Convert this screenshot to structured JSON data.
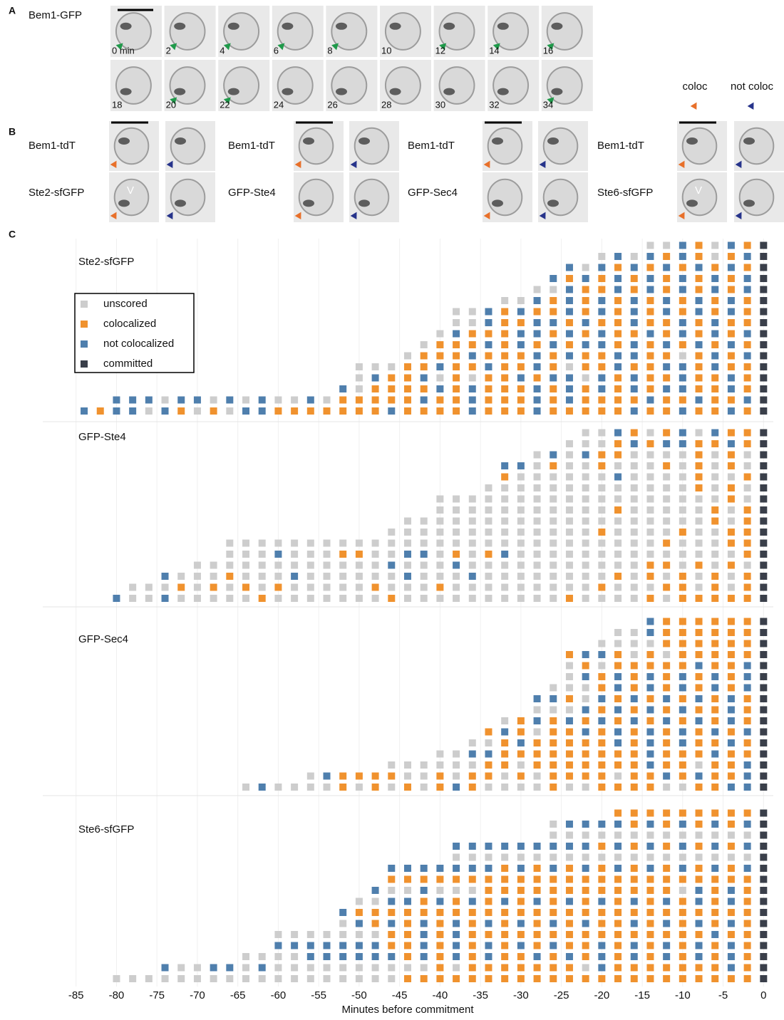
{
  "panel_a": {
    "label": "A",
    "row_label": "Bem1-GFP",
    "times": [
      "0 min",
      "2",
      "4",
      "6",
      "8",
      "10",
      "12",
      "14",
      "16",
      "18",
      "20",
      "22",
      "24",
      "26",
      "28",
      "30",
      "32",
      "34"
    ]
  },
  "panel_b": {
    "label": "B",
    "groups": [
      {
        "top": "Bem1-tdT",
        "bottom": "Ste2-sfGFP",
        "marker": "V"
      },
      {
        "top": "Bem1-tdT",
        "bottom": "GFP-Ste4"
      },
      {
        "top": "Bem1-tdT",
        "bottom": "GFP-Sec4"
      },
      {
        "top": "Bem1-tdT",
        "bottom": "Ste6-sfGFP",
        "marker": "V"
      }
    ],
    "legend": [
      "coloc",
      "not coloc"
    ]
  },
  "panel_c_label": "C",
  "chart_data": {
    "type": "dotgrid",
    "xlabel": "Minutes before commitment",
    "xlim": [
      -87,
      0.5
    ],
    "xticks": [
      -85,
      -80,
      -75,
      -70,
      -65,
      -60,
      -55,
      -50,
      -45,
      -40,
      -35,
      -30,
      -25,
      -20,
      -15,
      -10,
      -5,
      0
    ],
    "grid": true,
    "interval": 2,
    "legend": [
      {
        "name": "unscored",
        "color": "#cdcdcd"
      },
      {
        "name": "colocalized",
        "color": "#f0922e"
      },
      {
        "name": "not colocalized",
        "color": "#4f7fad"
      },
      {
        "name": "committed",
        "color": "#3a3f4a"
      }
    ],
    "panels": [
      {
        "name": "Ste2-sfGFP",
        "rows": [
          {
            "start": -84,
            "states": "2122021010221111111211112111211111211211213"
          },
          {
            "start": -80,
            "states": "22202202020020111112112111212111121121123"
          },
          {
            "start": -52,
            "states": "201111212111212121212211213"
          },
          {
            "start": -50,
            "states": "02112010112122021211211213"
          },
          {
            "start": -50,
            "states": "00011211211210112112212113"
          },
          {
            "start": -44,
            "states": "01112111212112211012123"
          },
          {
            "start": -42,
            "states": "0111212121221212121213"
          },
          {
            "start": -40,
            "states": "021112212121121212123"
          },
          {
            "start": -38,
            "states": "00211221211211212113"
          },
          {
            "start": -38,
            "states": "00212112121212121213"
          },
          {
            "start": -32,
            "states": "00212121212121213"
          },
          {
            "start": -28,
            "states": "002112121212123"
          },
          {
            "start": -26,
            "states": "21212121212123"
          },
          {
            "start": -24,
            "states": "2021212121213"
          },
          {
            "start": -20,
            "states": "02021210123"
          },
          {
            "start": -14,
            "states": "00210213"
          }
        ]
      },
      {
        "name": "GFP-Ste4",
        "rows": [
          {
            "start": -80,
            "states": "20020000010000000100000000001000010111113"
          },
          {
            "start": -78,
            "states": "0001010101000001000100000000010001101013"
          },
          {
            "start": -74,
            "states": "20001000200000020002000000001010101013"
          },
          {
            "start": -70,
            "states": "000000000000200020000000000011010103"
          },
          {
            "start": -66,
            "states": "0002000110022010120000000000000013"
          },
          {
            "start": -66,
            "states": "0000000000000000000000000001000113"
          },
          {
            "start": -46,
            "states": "000000000000010000100113"
          },
          {
            "start": -44,
            "states": "00000000000000000001013"
          },
          {
            "start": -40,
            "states": "000000000001000001013"
          },
          {
            "start": -40,
            "states": "000000000000000000103"
          },
          {
            "start": -34,
            "states": "000000000000010103"
          },
          {
            "start": -32,
            "states": "10000002000010013"
          },
          {
            "start": -32,
            "states": "22010010001010103"
          },
          {
            "start": -28,
            "states": "020211000010103"
          },
          {
            "start": -24,
            "states": "0001212211213"
          },
          {
            "start": -22,
            "states": "002101202113"
          }
        ]
      },
      {
        "name": "GFP-Sec4",
        "rows": [
          {
            "start": -64,
            "states": "020000101010121000010011110011223"
          },
          {
            "start": -56,
            "states": "02111100101101011110112121123"
          },
          {
            "start": -46,
            "states": "000000110111111121101123"
          },
          {
            "start": -40,
            "states": "002211111111121112113"
          },
          {
            "start": -36,
            "states": "0012111112121211213"
          },
          {
            "start": -34,
            "states": "121011212121212123"
          },
          {
            "start": -32,
            "states": "01212121212121213"
          },
          {
            "start": -28,
            "states": "000212121211213"
          },
          {
            "start": -28,
            "states": "221021212121213"
          },
          {
            "start": -26,
            "states": "00012121212123"
          },
          {
            "start": -24,
            "states": "0212121212123"
          },
          {
            "start": -24,
            "states": "0101111121123"
          },
          {
            "start": -24,
            "states": "1221010111113"
          },
          {
            "start": -20,
            "states": "00001111113"
          },
          {
            "start": -18,
            "states": "0021111113"
          },
          {
            "start": -14,
            "states": "21111113"
          }
        ]
      },
      {
        "name": "Ste6-sfGFP",
        "rows": [
          {
            "start": -80,
            "states": "00000000000000000011111111111111111111113"
          },
          {
            "start": -74,
            "states": "20022020000000000101111111021111111213"
          },
          {
            "start": -64,
            "states": "000022222212121211212121212121213"
          },
          {
            "start": -60,
            "states": "2222222112121212121121212121213"
          },
          {
            "start": -60,
            "states": "0000000112121111111111111112113"
          },
          {
            "start": -52,
            "states": "021212121212121211212121213"
          },
          {
            "start": -52,
            "states": "211111111111111111111111113"
          },
          {
            "start": -50,
            "states": "00221212121212121212121213"
          },
          {
            "start": -48,
            "states": "2002000111111111111021213"
          },
          {
            "start": -46,
            "states": "111111111111111111111113"
          },
          {
            "start": -46,
            "states": "222222212121212121212123"
          },
          {
            "start": -38,
            "states": "00000000000000000003"
          },
          {
            "start": -38,
            "states": "22222222212121212123"
          },
          {
            "start": -26,
            "states": "00000000000003"
          },
          {
            "start": -26,
            "states": "02222121212123"
          },
          {
            "start": -18,
            "states": "1111111113"
          }
        ]
      }
    ]
  }
}
